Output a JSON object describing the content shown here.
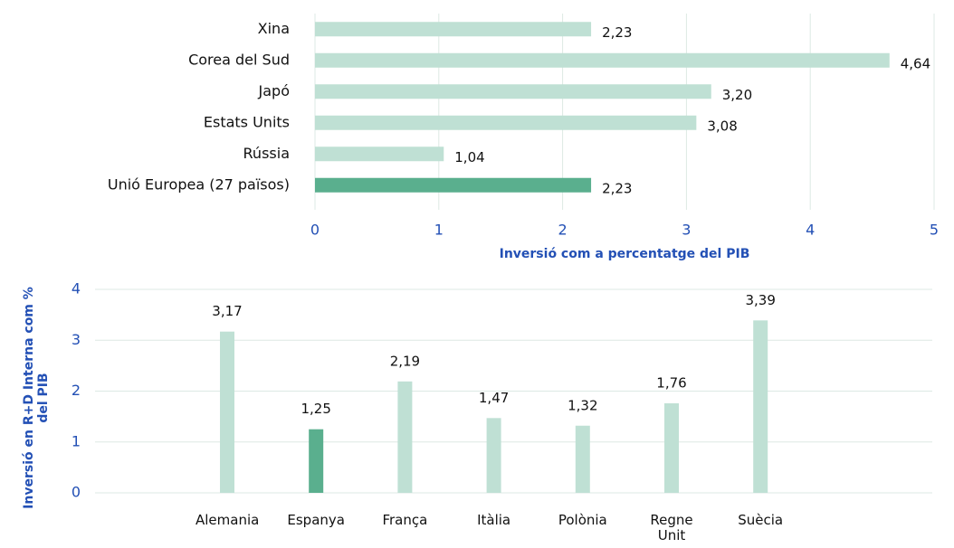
{
  "chart_data": [
    {
      "type": "hbar",
      "categories": [
        "Xina",
        "Corea del Sud",
        "Japó",
        "Estats Units",
        "Rússia",
        "Unió Europea (27 països)"
      ],
      "values": [
        2.23,
        4.64,
        3.2,
        3.08,
        1.04,
        2.23
      ],
      "value_labels": [
        "2,23",
        "4,64",
        "3,20",
        "3,08",
        "1,04",
        "2,23"
      ],
      "colors": [
        "#bfe0d4",
        "#bfe0d4",
        "#bfe0d4",
        "#bfe0d4",
        "#bfe0d4",
        "#5aaf8e"
      ],
      "xlim": [
        0,
        5
      ],
      "xticks": [
        0,
        1,
        2,
        3,
        4,
        5
      ],
      "x_label": "Inversió com a percentatge del PIB",
      "grid": true
    },
    {
      "type": "bar",
      "categories": [
        "Alemania",
        "Espanya",
        "França",
        "Itàlia",
        "Polònia",
        "Regne Unit",
        "Suècia"
      ],
      "values": [
        3.17,
        1.25,
        2.19,
        1.47,
        1.32,
        1.76,
        3.39
      ],
      "value_labels": [
        "3,17",
        "1,25",
        "2,19",
        "1,47",
        "1,32",
        "1,76",
        "3,39"
      ],
      "colors": [
        "#bfe0d4",
        "#5aaf8e",
        "#bfe0d4",
        "#bfe0d4",
        "#bfe0d4",
        "#bfe0d4",
        "#bfe0d4"
      ],
      "ylim": [
        0,
        4
      ],
      "yticks": [
        0,
        1,
        2,
        3,
        4
      ],
      "y_label": "Inversió en R+D Interna com % del PIB",
      "grid": true
    }
  ]
}
